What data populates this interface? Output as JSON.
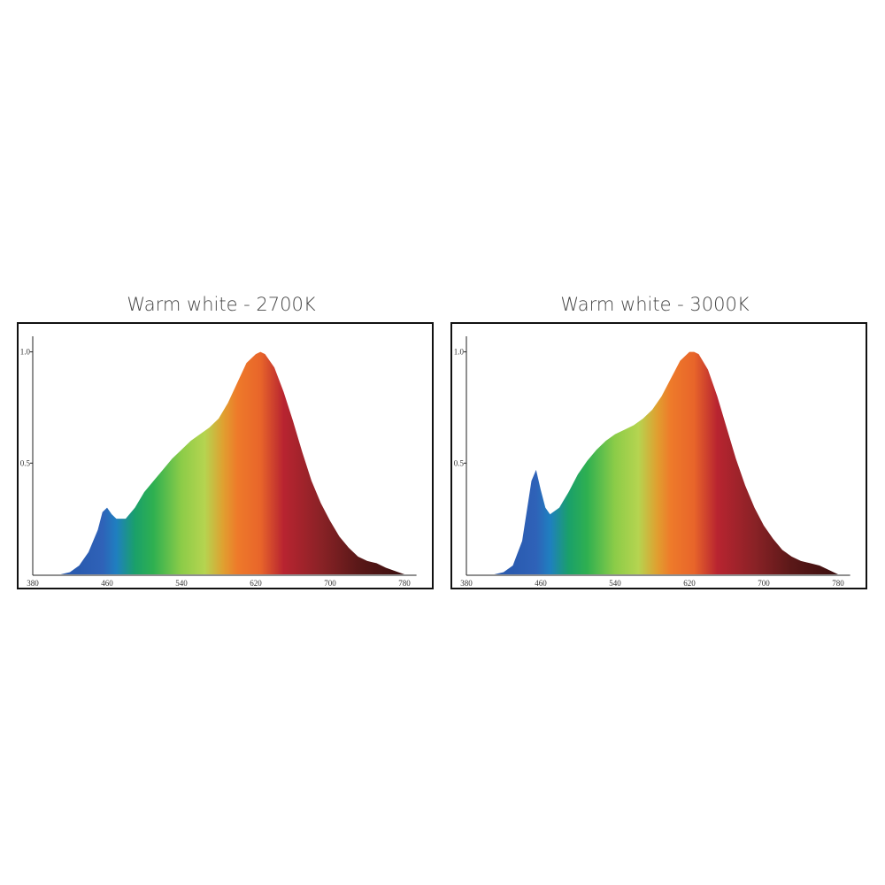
{
  "chart_data": [
    {
      "type": "area",
      "title": "Warm white - 2700K",
      "x": [
        380,
        390,
        400,
        410,
        420,
        430,
        440,
        450,
        455,
        460,
        465,
        470,
        480,
        490,
        500,
        510,
        520,
        530,
        540,
        550,
        560,
        570,
        580,
        590,
        600,
        610,
        620,
        625,
        630,
        640,
        650,
        660,
        670,
        680,
        690,
        700,
        710,
        720,
        730,
        740,
        750,
        760,
        770,
        780
      ],
      "values": [
        0,
        0,
        0,
        0,
        0.01,
        0.04,
        0.1,
        0.2,
        0.28,
        0.3,
        0.27,
        0.25,
        0.25,
        0.3,
        0.37,
        0.42,
        0.47,
        0.52,
        0.56,
        0.6,
        0.63,
        0.66,
        0.7,
        0.77,
        0.86,
        0.95,
        0.99,
        1.0,
        0.99,
        0.93,
        0.82,
        0.69,
        0.55,
        0.42,
        0.32,
        0.24,
        0.17,
        0.12,
        0.08,
        0.06,
        0.05,
        0.03,
        0.015,
        0
      ],
      "xlim": [
        380,
        792
      ],
      "ylim": [
        0,
        1.07
      ],
      "xticks": [
        380,
        460,
        540,
        620,
        700,
        780
      ],
      "yticks": [
        0.5,
        {
          "value": 1,
          "label": "1.0"
        }
      ]
    },
    {
      "type": "area",
      "title": "Warm white - 3000K",
      "x": [
        380,
        390,
        400,
        410,
        420,
        430,
        440,
        450,
        455,
        460,
        465,
        470,
        480,
        490,
        500,
        510,
        520,
        530,
        540,
        550,
        560,
        570,
        580,
        590,
        600,
        610,
        620,
        625,
        630,
        640,
        650,
        660,
        670,
        680,
        690,
        700,
        710,
        720,
        730,
        740,
        750,
        760,
        770,
        780
      ],
      "values": [
        0,
        0,
        0,
        0,
        0.01,
        0.04,
        0.15,
        0.42,
        0.47,
        0.38,
        0.3,
        0.27,
        0.3,
        0.37,
        0.45,
        0.51,
        0.56,
        0.6,
        0.63,
        0.65,
        0.67,
        0.7,
        0.74,
        0.8,
        0.88,
        0.96,
        1.0,
        1.0,
        0.99,
        0.92,
        0.8,
        0.66,
        0.52,
        0.4,
        0.3,
        0.22,
        0.16,
        0.11,
        0.08,
        0.06,
        0.05,
        0.04,
        0.02,
        0
      ],
      "xlim": [
        380,
        792
      ],
      "ylim": [
        0,
        1.07
      ],
      "xticks": [
        380,
        460,
        540,
        620,
        700,
        780
      ],
      "yticks": [
        0.5,
        {
          "value": 1,
          "label": "1.0"
        }
      ]
    }
  ]
}
